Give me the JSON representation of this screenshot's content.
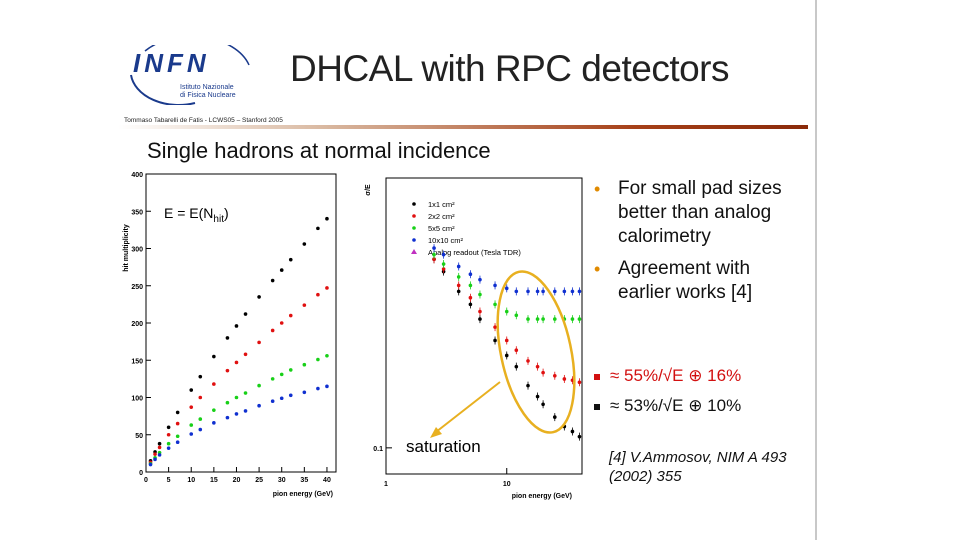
{
  "header": {
    "logo_text": "INFN",
    "logo_sub_line1": "Istituto Nazionale",
    "logo_sub_line2": "di Fisica Nucleare",
    "title": "DHCAL with RPC detectors",
    "author": "Tommaso Tabarelli de Fatis - LCWS05 – Stanford 2005"
  },
  "subtitle": "Single hadrons at normal incidence",
  "bullets": [
    "For small pad sizes better than analog calorimetry",
    "Agreement with earlier works [4]"
  ],
  "formulas": [
    "≈ 55%/√E ⊕ 16%",
    "≈ 53%/√E ⊕ 10%"
  ],
  "reference": {
    "line1": "[4] V.Ammosov, NIM A 493",
    "line2": "(2002) 355"
  },
  "colors": {
    "series_1x1": "#000000",
    "series_2x2": "#e01010",
    "series_5x5": "#18d018",
    "series_10x10": "#1030d0",
    "series_tesla": "#c030c0",
    "annotation": "#e8b020",
    "formula_red": "#d21010"
  },
  "chart_data": [
    {
      "type": "scatter",
      "xlabel": "pion energy (GeV)",
      "ylabel": "hit multiplicity",
      "xlim": [
        0,
        42
      ],
      "ylim": [
        0,
        400
      ],
      "x_ticks": [
        0,
        5,
        10,
        15,
        20,
        25,
        30,
        35,
        40
      ],
      "y_ticks": [
        0,
        50,
        100,
        150,
        200,
        250,
        300,
        350,
        400
      ],
      "annotation": "E = E(N",
      "annotation_sub": "hit",
      "annotation_close": ")",
      "series": [
        {
          "name": "1x1 cm²",
          "color": "#000000",
          "x": [
            1,
            2,
            3,
            5,
            7,
            10,
            12,
            15,
            18,
            20,
            22,
            25,
            28,
            30,
            32,
            35,
            38,
            40
          ],
          "y": [
            15,
            27,
            38,
            60,
            80,
            110,
            128,
            155,
            180,
            196,
            212,
            235,
            257,
            271,
            285,
            306,
            327,
            340
          ]
        },
        {
          "name": "2x2 cm²",
          "color": "#e01010",
          "x": [
            1,
            2,
            3,
            5,
            7,
            10,
            12,
            15,
            18,
            20,
            22,
            25,
            28,
            30,
            32,
            35,
            38,
            40
          ],
          "y": [
            13,
            24,
            33,
            50,
            65,
            87,
            100,
            118,
            136,
            147,
            158,
            174,
            190,
            200,
            210,
            224,
            238,
            247
          ]
        },
        {
          "name": "5x5 cm²",
          "color": "#18d018",
          "x": [
            1,
            2,
            3,
            5,
            7,
            10,
            12,
            15,
            18,
            20,
            22,
            25,
            28,
            30,
            32,
            35,
            38,
            40
          ],
          "y": [
            11,
            19,
            26,
            38,
            48,
            63,
            71,
            83,
            93,
            100,
            106,
            116,
            125,
            131,
            137,
            144,
            151,
            156
          ]
        },
        {
          "name": "10x10 cm²",
          "color": "#1030d0",
          "x": [
            1,
            2,
            3,
            5,
            7,
            10,
            12,
            15,
            18,
            20,
            22,
            25,
            28,
            30,
            32,
            35,
            38,
            40
          ],
          "y": [
            10,
            17,
            23,
            32,
            40,
            51,
            57,
            66,
            73,
            78,
            82,
            89,
            95,
            99,
            103,
            107,
            112,
            115
          ]
        }
      ]
    },
    {
      "type": "scatter",
      "xscale": "log",
      "yscale": "log",
      "xlabel": "pion energy (GeV)",
      "ylabel": "σ/E",
      "xlim": [
        1,
        42
      ],
      "ylim": [
        0.08,
        1.0
      ],
      "x_ticks": [
        1,
        10
      ],
      "y_ticks": [
        0.1
      ],
      "annotation": "saturation",
      "series": [
        {
          "name": "1x1 cm²",
          "color": "#000000",
          "x": [
            2.5,
            3,
            4,
            5,
            6,
            8,
            10,
            12,
            15,
            18,
            20,
            25,
            30,
            35,
            40
          ],
          "y": [
            0.5,
            0.45,
            0.38,
            0.34,
            0.3,
            0.25,
            0.22,
            0.2,
            0.17,
            0.155,
            0.145,
            0.13,
            0.12,
            0.115,
            0.11
          ]
        },
        {
          "name": "2x2 cm²",
          "color": "#e01010",
          "x": [
            2.5,
            3,
            4,
            5,
            6,
            8,
            10,
            12,
            15,
            18,
            20,
            25,
            30,
            35,
            40
          ],
          "y": [
            0.5,
            0.46,
            0.4,
            0.36,
            0.32,
            0.28,
            0.25,
            0.23,
            0.21,
            0.2,
            0.19,
            0.185,
            0.18,
            0.178,
            0.175
          ]
        },
        {
          "name": "5x5 cm²",
          "color": "#18d018",
          "x": [
            2.5,
            3,
            4,
            5,
            6,
            8,
            10,
            12,
            15,
            18,
            20,
            25,
            30,
            35,
            40
          ],
          "y": [
            0.52,
            0.48,
            0.43,
            0.4,
            0.37,
            0.34,
            0.32,
            0.31,
            0.3,
            0.3,
            0.3,
            0.3,
            0.3,
            0.3,
            0.3
          ]
        },
        {
          "name": "10x10 cm²",
          "color": "#1030d0",
          "x": [
            2.5,
            3,
            4,
            5,
            6,
            8,
            10,
            12,
            15,
            18,
            20,
            25,
            30,
            35,
            40
          ],
          "y": [
            0.55,
            0.52,
            0.47,
            0.44,
            0.42,
            0.4,
            0.39,
            0.38,
            0.38,
            0.38,
            0.38,
            0.38,
            0.38,
            0.38,
            0.38
          ]
        },
        {
          "name": "Analog readout (Tesla TDR)",
          "color": "#c030c0",
          "x": [],
          "y": []
        }
      ]
    }
  ]
}
